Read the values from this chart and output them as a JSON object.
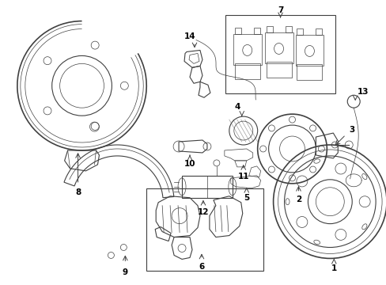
{
  "background_color": "#ffffff",
  "line_color": "#404040",
  "label_color": "#000000",
  "fig_width": 4.89,
  "fig_height": 3.6,
  "dpi": 100
}
